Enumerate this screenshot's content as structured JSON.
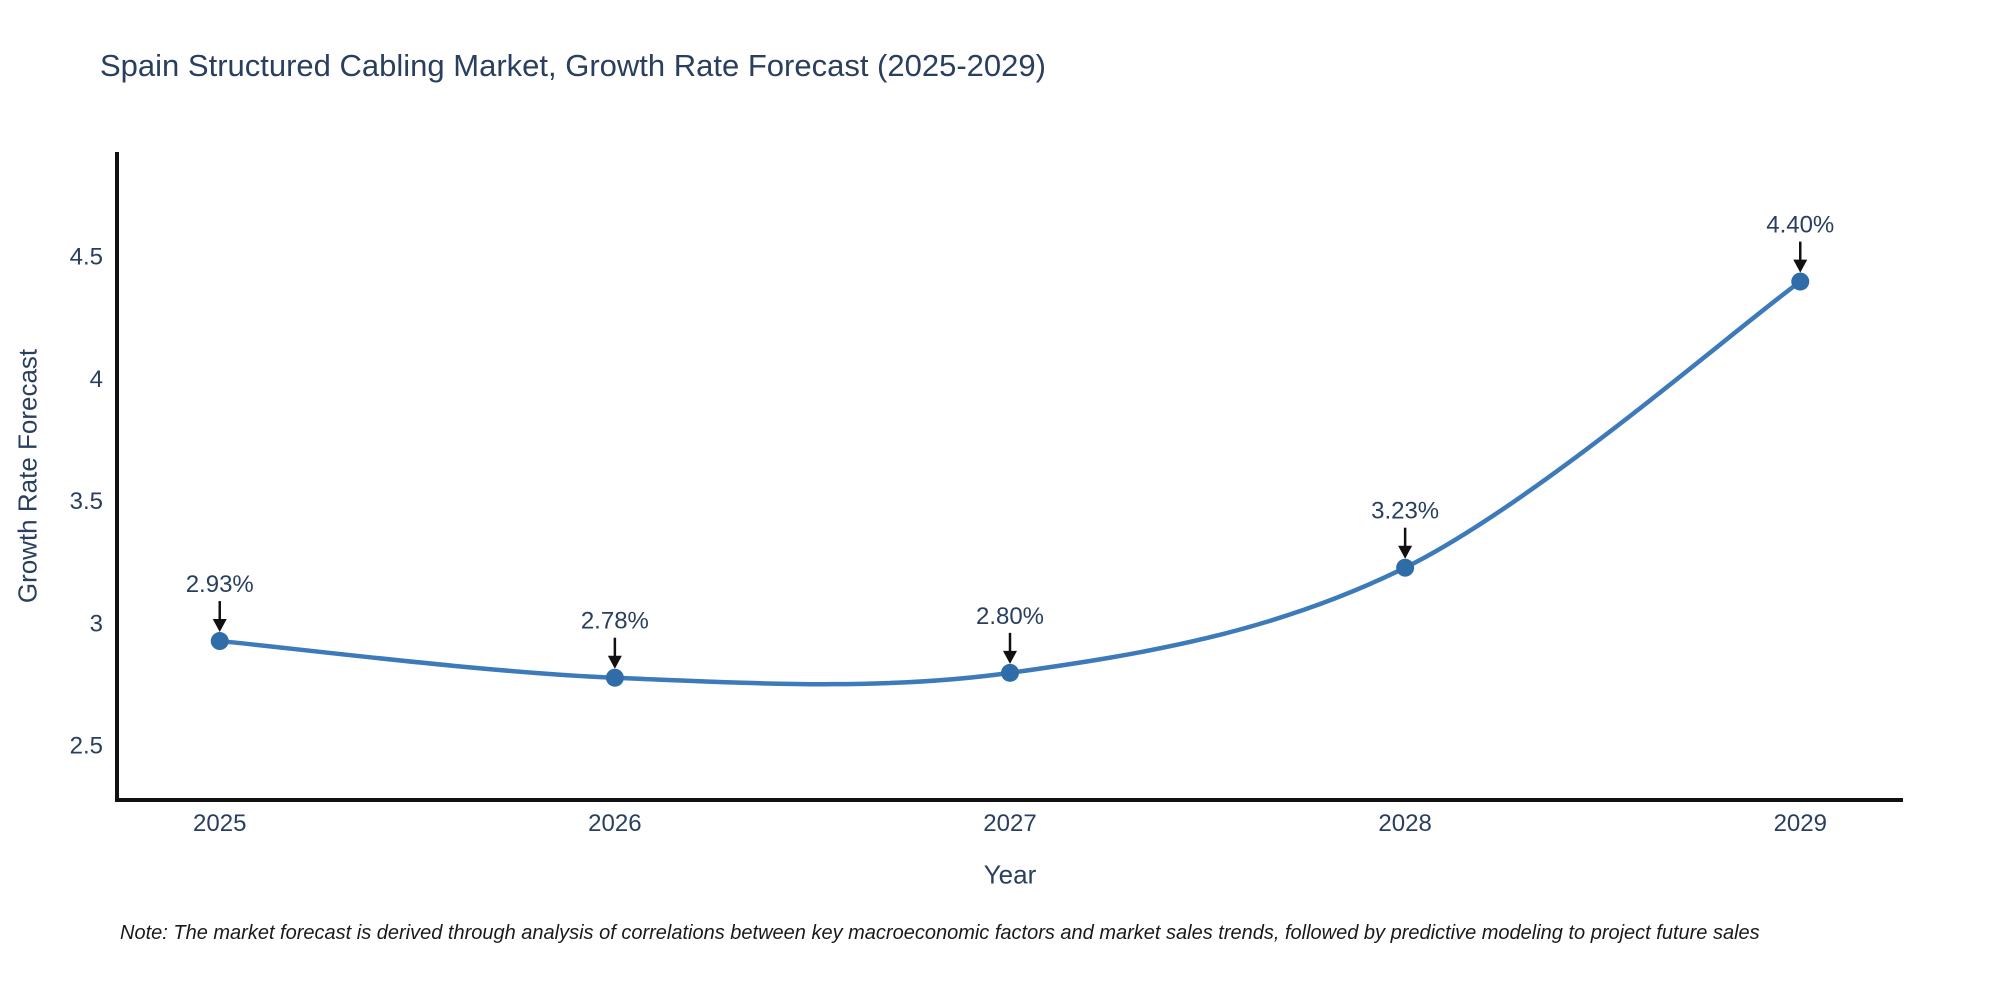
{
  "title": "Spain Structured Cabling Market, Growth Rate Forecast (2025-2029)",
  "note": {
    "text": "Note: The market forecast is derived through analysis of correlations between key macroeconomic factors and market sales trends, followed by predictive modeling to project future sales"
  },
  "chart_data": {
    "type": "line",
    "title": "Spain Structured Cabling Market, Growth Rate Forecast (2025-2029)",
    "xlabel": "Year",
    "ylabel": "Growth Rate Forecast",
    "x": [
      2025,
      2026,
      2027,
      2028,
      2029
    ],
    "y": [
      2.93,
      2.78,
      2.8,
      3.23,
      4.4
    ],
    "point_labels": [
      "2.93%",
      "2.78%",
      "2.80%",
      "3.23%",
      "4.40%"
    ],
    "xticks": {
      "values": [
        2025,
        2026,
        2027,
        2028,
        2029
      ],
      "labels": [
        "2025",
        "2026",
        "2027",
        "2028",
        "2029"
      ]
    },
    "yticks": {
      "values": [
        2.5,
        3,
        3.5,
        4,
        4.5
      ],
      "labels": [
        "2.5",
        "3",
        "3.5",
        "4",
        "4.5"
      ]
    },
    "xlim": [
      2024.74,
      2029.26
    ],
    "ylim": [
      2.28,
      4.93
    ],
    "grid": false,
    "legend": "none",
    "line_shape": "spline",
    "annotations_have_arrows": true,
    "colors": {
      "line": "#3d7ab9",
      "marker": "#2e6da8",
      "axis": "#111111",
      "arrow": "#111111",
      "text": "#2a3f5f",
      "background": "#ffffff"
    }
  }
}
